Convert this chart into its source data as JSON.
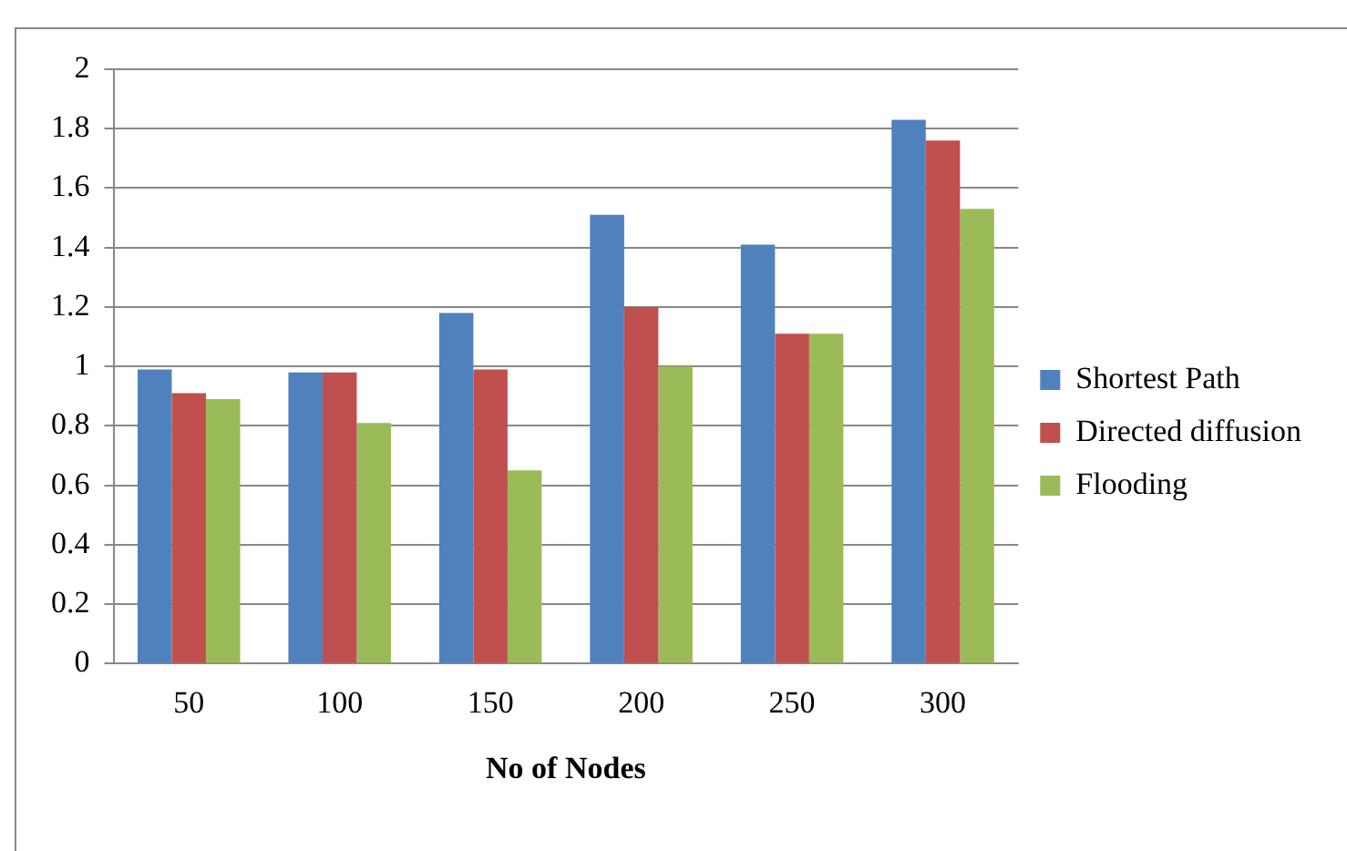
{
  "chart_data": {
    "type": "bar",
    "xlabel": "No of Nodes",
    "categories": [
      "50",
      "100",
      "150",
      "200",
      "250",
      "300"
    ],
    "series": [
      {
        "name": "Shortest Path",
        "color": "#4f81bd",
        "values": [
          0.99,
          0.98,
          1.18,
          1.51,
          1.41,
          1.83
        ]
      },
      {
        "name": "Directed diffusion",
        "color": "#c0504d",
        "values": [
          0.91,
          0.98,
          0.99,
          1.2,
          1.11,
          1.76
        ]
      },
      {
        "name": "Flooding",
        "color": "#9bbb59",
        "values": [
          0.89,
          0.81,
          0.65,
          1.0,
          1.11,
          1.53
        ]
      }
    ],
    "ylim": [
      0,
      2
    ],
    "yticks": [
      0,
      0.2,
      0.4,
      0.6,
      0.8,
      1,
      1.2,
      1.4,
      1.6,
      1.8,
      2
    ],
    "grid": "y",
    "legend": "right"
  }
}
